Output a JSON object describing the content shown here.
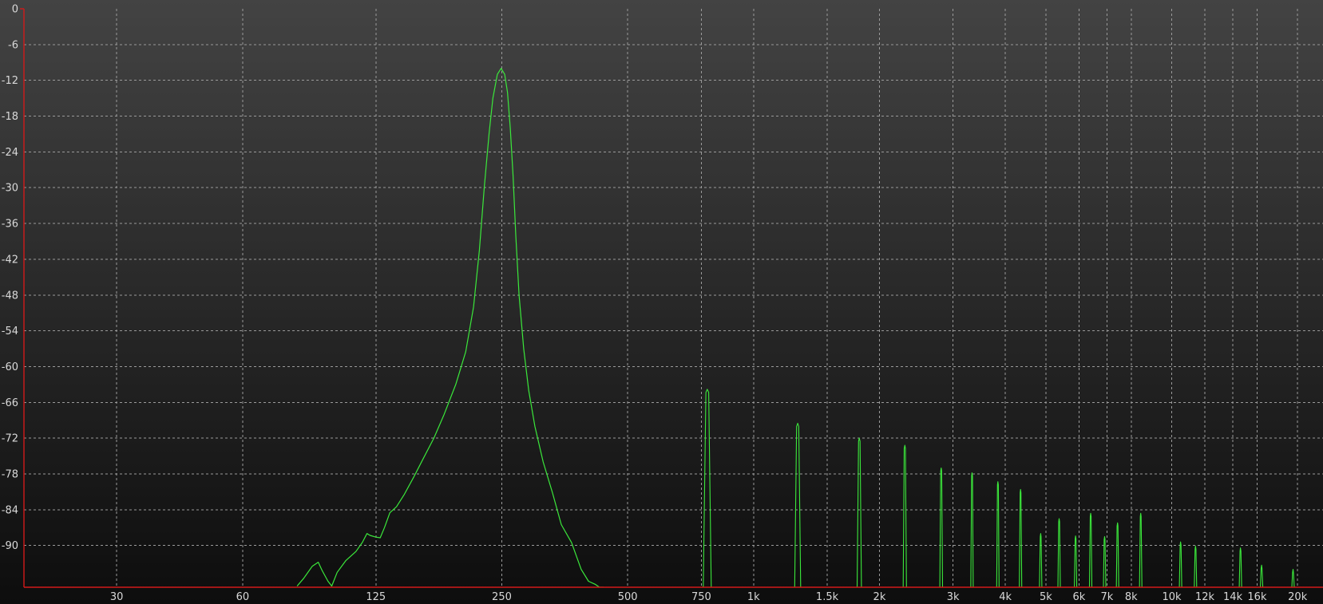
{
  "chart_data": {
    "type": "line",
    "title": "",
    "xlabel": "",
    "ylabel": "",
    "x_scale": "log",
    "xlim": [
      18,
      23000
    ],
    "ylim": [
      -97,
      0
    ],
    "grid": true,
    "legend": "none",
    "x_ticks": [
      {
        "label": "30",
        "value": 30
      },
      {
        "label": "60",
        "value": 60
      },
      {
        "label": "125",
        "value": 125
      },
      {
        "label": "250",
        "value": 250
      },
      {
        "label": "500",
        "value": 500
      },
      {
        "label": "750",
        "value": 750
      },
      {
        "label": "1k",
        "value": 1000
      },
      {
        "label": "1.5k",
        "value": 1500
      },
      {
        "label": "2k",
        "value": 2000
      },
      {
        "label": "3k",
        "value": 3000
      },
      {
        "label": "4k",
        "value": 4000
      },
      {
        "label": "5k",
        "value": 5000
      },
      {
        "label": "6k",
        "value": 6000
      },
      {
        "label": "7k",
        "value": 7000
      },
      {
        "label": "8k",
        "value": 8000
      },
      {
        "label": "10k",
        "value": 10000
      },
      {
        "label": "12k",
        "value": 12000
      },
      {
        "label": "14k",
        "value": 14000
      },
      {
        "label": "16k",
        "value": 16000
      },
      {
        "label": "20k",
        "value": 20000
      }
    ],
    "y_ticks": [
      {
        "label": "0",
        "value": 0
      },
      {
        "label": "-6",
        "value": -6
      },
      {
        "label": "-12",
        "value": -12
      },
      {
        "label": "-18",
        "value": -18
      },
      {
        "label": "-24",
        "value": -24
      },
      {
        "label": "-30",
        "value": -30
      },
      {
        "label": "-36",
        "value": -36
      },
      {
        "label": "-42",
        "value": -42
      },
      {
        "label": "-48",
        "value": -48
      },
      {
        "label": "-54",
        "value": -54
      },
      {
        "label": "-60",
        "value": -60
      },
      {
        "label": "-66",
        "value": -66
      },
      {
        "label": "-72",
        "value": -72
      },
      {
        "label": "-78",
        "value": -78
      },
      {
        "label": "-84",
        "value": -84
      },
      {
        "label": "-90",
        "value": -90
      }
    ],
    "series": [
      {
        "type": "line",
        "x": [
          81,
          84,
          88,
          91,
          93,
          96,
          98,
          101,
          106,
          112,
          116,
          119,
          121,
          125,
          128,
          131,
          135,
          140,
          146,
          154,
          162,
          172,
          182,
          194,
          205,
          214,
          221,
          227,
          233,
          238,
          244,
          249,
          254,
          258,
          262,
          266,
          270,
          275,
          282,
          290,
          300,
          314,
          330,
          347,
          367,
          387,
          403,
          418,
          428,
          438
        ],
        "y": [
          -96.8,
          -95.5,
          -93.5,
          -92.8,
          -94.2,
          -96.0,
          -96.8,
          -94.5,
          -92.5,
          -91.0,
          -89.5,
          -88.0,
          -88.3,
          -88.6,
          -88.7,
          -87.0,
          -84.5,
          -83.5,
          -81.5,
          -78.5,
          -75.5,
          -72.0,
          -68.0,
          -63.0,
          -57.5,
          -50.0,
          -40.5,
          -30.0,
          -21.0,
          -15.0,
          -11.0,
          -10.0,
          -11.0,
          -14.0,
          -20.0,
          -28.0,
          -38.0,
          -48.0,
          -57.0,
          -64.0,
          -70.0,
          -76.0,
          -81.0,
          -86.5,
          -89.5,
          -94.0,
          -96.0,
          -96.5,
          -97.0,
          -97.0
        ]
      },
      {
        "type": "peaks",
        "x": [
          775,
          1275,
          1790,
          2300,
          2810,
          3330,
          3840,
          4350,
          4860,
          5380,
          5890,
          6400,
          6910,
          7420,
          8430,
          10500,
          11400,
          14600,
          16400,
          19500
        ],
        "y": [
          -63.8,
          -69.5,
          -72.0,
          -73.2,
          -77.0,
          -77.8,
          -79.3,
          -80.6,
          -88.0,
          -85.5,
          -88.4,
          -84.6,
          -88.5,
          -86.2,
          -84.6,
          -89.4,
          -90.1,
          -90.4,
          -93.3,
          -94.0
        ]
      }
    ]
  },
  "colors": {
    "trace": "#3be83b",
    "axis": "#d21a1a",
    "grid": "#9a9a9a",
    "text": "#d9d9d9",
    "background_top": "#434343",
    "background_bottom": "#0d0d0d"
  }
}
